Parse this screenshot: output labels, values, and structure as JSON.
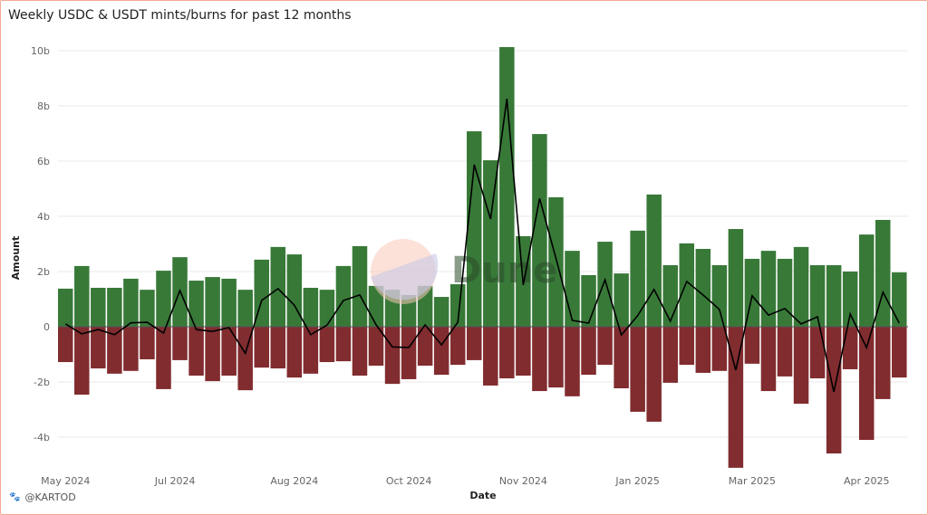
{
  "chart_data": {
    "type": "bar",
    "title": "Weekly USDC & USDT mints/burns for past 12 months",
    "xlabel": "Date",
    "ylabel": "Amount",
    "ylim": [
      -5.2,
      10.5
    ],
    "yticks": [
      {
        "v": 10,
        "label": "10b"
      },
      {
        "v": 8,
        "label": "8b"
      },
      {
        "v": 6,
        "label": "6b"
      },
      {
        "v": 4,
        "label": "4b"
      },
      {
        "v": 2,
        "label": "2b"
      },
      {
        "v": 0,
        "label": "0"
      },
      {
        "v": -2,
        "label": "-2b"
      },
      {
        "v": -4,
        "label": "-4b"
      }
    ],
    "xticks": [
      {
        "week": 0,
        "label": "May 2024"
      },
      {
        "week": 6.7,
        "label": "Jul 2024"
      },
      {
        "week": 14,
        "label": "Aug 2024"
      },
      {
        "week": 21,
        "label": "Oct 2024"
      },
      {
        "week": 28,
        "label": "Nov 2024"
      },
      {
        "week": 35,
        "label": "Jan 2025"
      },
      {
        "week": 42,
        "label": "Mar 2025"
      },
      {
        "week": 49,
        "label": "Apr 2025"
      }
    ],
    "grid": true,
    "series": [
      {
        "name": "mints",
        "color": "#387938",
        "values": [
          1.38,
          2.2,
          1.41,
          1.41,
          1.74,
          1.34,
          2.03,
          2.52,
          1.67,
          1.8,
          1.74,
          1.34,
          2.43,
          2.89,
          2.62,
          1.41,
          1.34,
          2.2,
          2.92,
          1.48,
          1.34,
          1.15,
          1.48,
          1.08,
          1.54,
          7.08,
          6.03,
          10.13,
          3.28,
          6.98,
          4.69,
          2.75,
          1.87,
          3.08,
          1.93,
          3.48,
          4.79,
          2.23,
          3.02,
          2.82,
          2.23,
          3.54,
          2.46,
          2.75,
          2.46,
          2.89,
          2.23,
          2.23,
          2.0,
          3.34,
          3.87,
          1.97
        ]
      },
      {
        "name": "burns",
        "color": "#812c2f",
        "values": [
          -1.28,
          -2.46,
          -1.51,
          -1.7,
          -1.6,
          -1.18,
          -2.26,
          -1.21,
          -1.77,
          -1.97,
          -1.77,
          -2.3,
          -1.48,
          -1.51,
          -1.84,
          -1.7,
          -1.28,
          -1.25,
          -1.77,
          -1.41,
          -2.07,
          -1.9,
          -1.41,
          -1.74,
          -1.38,
          -1.21,
          -2.13,
          -1.87,
          -1.77,
          -2.33,
          -2.2,
          -2.52,
          -1.74,
          -1.38,
          -2.23,
          -3.08,
          -3.44,
          -2.03,
          -1.38,
          -1.67,
          -1.6,
          -5.11,
          -1.34,
          -2.33,
          -1.8,
          -2.79,
          -1.87,
          -4.59,
          -1.54,
          -4.1,
          -2.62,
          -1.84
        ]
      },
      {
        "name": "net",
        "type": "line",
        "color": "#000000"
      }
    ],
    "watermark": "Dune"
  },
  "footer": {
    "author": "@KARTOD"
  }
}
